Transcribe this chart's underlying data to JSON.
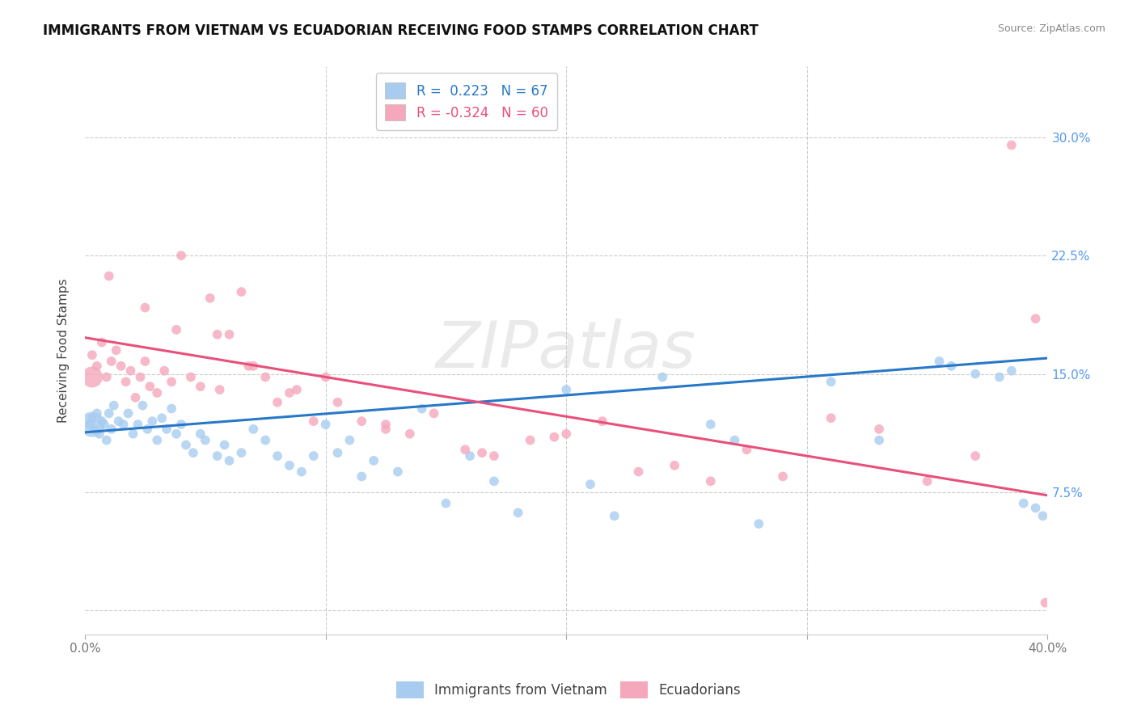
{
  "title": "IMMIGRANTS FROM VIETNAM VS ECUADORIAN RECEIVING FOOD STAMPS CORRELATION CHART",
  "source": "Source: ZipAtlas.com",
  "ylabel": "Receiving Food Stamps",
  "xlim": [
    0.0,
    0.4
  ],
  "ylim": [
    -0.015,
    0.345
  ],
  "ytick_values": [
    0.0,
    0.075,
    0.15,
    0.225,
    0.3
  ],
  "ytick_labels": [
    "",
    "7.5%",
    "15.0%",
    "22.5%",
    "30.0%"
  ],
  "xtick_values": [
    0.0,
    0.1,
    0.2,
    0.3,
    0.4
  ],
  "xtick_labels_show": [
    "0.0%",
    "",
    "",
    "",
    "40.0%"
  ],
  "legend_blue_label": "R =  0.223   N = 67",
  "legend_pink_label": "R = -0.324   N = 60",
  "watermark": "ZIPatlas",
  "legend_bottom_blue": "Immigrants from Vietnam",
  "legend_bottom_pink": "Ecuadorians",
  "blue_color": "#A8CCF0",
  "pink_color": "#F5A8BC",
  "blue_line_color": "#2878C8",
  "pink_line_color": "#E8507A",
  "blue_trend_x0": 0.0,
  "blue_trend_y0": 0.113,
  "blue_trend_x1": 0.4,
  "blue_trend_y1": 0.16,
  "pink_trend_x0": 0.0,
  "pink_trend_y0": 0.173,
  "pink_trend_x1": 0.4,
  "pink_trend_y1": 0.073,
  "blue_scatter_x": [
    0.002,
    0.003,
    0.004,
    0.005,
    0.006,
    0.007,
    0.008,
    0.009,
    0.01,
    0.011,
    0.012,
    0.014,
    0.016,
    0.018,
    0.02,
    0.022,
    0.024,
    0.026,
    0.028,
    0.03,
    0.032,
    0.034,
    0.036,
    0.038,
    0.04,
    0.042,
    0.045,
    0.048,
    0.05,
    0.055,
    0.058,
    0.06,
    0.065,
    0.07,
    0.075,
    0.08,
    0.085,
    0.09,
    0.095,
    0.1,
    0.105,
    0.11,
    0.115,
    0.12,
    0.13,
    0.14,
    0.15,
    0.16,
    0.17,
    0.18,
    0.2,
    0.21,
    0.22,
    0.24,
    0.26,
    0.27,
    0.28,
    0.31,
    0.33,
    0.355,
    0.36,
    0.37,
    0.38,
    0.385,
    0.39,
    0.395,
    0.398
  ],
  "blue_scatter_y": [
    0.118,
    0.122,
    0.115,
    0.125,
    0.112,
    0.12,
    0.118,
    0.108,
    0.125,
    0.115,
    0.13,
    0.12,
    0.118,
    0.125,
    0.112,
    0.118,
    0.13,
    0.115,
    0.12,
    0.108,
    0.122,
    0.115,
    0.128,
    0.112,
    0.118,
    0.105,
    0.1,
    0.112,
    0.108,
    0.098,
    0.105,
    0.095,
    0.1,
    0.115,
    0.108,
    0.098,
    0.092,
    0.088,
    0.098,
    0.118,
    0.1,
    0.108,
    0.085,
    0.095,
    0.088,
    0.128,
    0.068,
    0.098,
    0.082,
    0.062,
    0.14,
    0.08,
    0.06,
    0.148,
    0.118,
    0.108,
    0.055,
    0.145,
    0.108,
    0.158,
    0.155,
    0.15,
    0.148,
    0.152,
    0.068,
    0.065,
    0.06
  ],
  "pink_scatter_x": [
    0.003,
    0.005,
    0.007,
    0.009,
    0.011,
    0.013,
    0.015,
    0.017,
    0.019,
    0.021,
    0.023,
    0.025,
    0.027,
    0.03,
    0.033,
    0.036,
    0.04,
    0.044,
    0.048,
    0.052,
    0.056,
    0.06,
    0.065,
    0.07,
    0.075,
    0.08,
    0.088,
    0.095,
    0.105,
    0.115,
    0.125,
    0.135,
    0.145,
    0.158,
    0.17,
    0.185,
    0.2,
    0.215,
    0.23,
    0.245,
    0.26,
    0.275,
    0.29,
    0.31,
    0.33,
    0.35,
    0.37,
    0.385,
    0.395,
    0.399,
    0.01,
    0.025,
    0.038,
    0.055,
    0.068,
    0.085,
    0.1,
    0.125,
    0.165,
    0.195
  ],
  "pink_scatter_y": [
    0.162,
    0.155,
    0.17,
    0.148,
    0.158,
    0.165,
    0.155,
    0.145,
    0.152,
    0.135,
    0.148,
    0.158,
    0.142,
    0.138,
    0.152,
    0.145,
    0.225,
    0.148,
    0.142,
    0.198,
    0.14,
    0.175,
    0.202,
    0.155,
    0.148,
    0.132,
    0.14,
    0.12,
    0.132,
    0.12,
    0.118,
    0.112,
    0.125,
    0.102,
    0.098,
    0.108,
    0.112,
    0.12,
    0.088,
    0.092,
    0.082,
    0.102,
    0.085,
    0.122,
    0.115,
    0.082,
    0.098,
    0.295,
    0.185,
    0.005,
    0.212,
    0.192,
    0.178,
    0.175,
    0.155,
    0.138,
    0.148,
    0.115,
    0.1,
    0.11
  ],
  "blue_big_x": [
    0.003
  ],
  "blue_big_y": [
    0.118
  ],
  "blue_big_size": 500,
  "pink_big_x": [
    0.003
  ],
  "pink_big_y": [
    0.148
  ],
  "pink_big_size": 350
}
